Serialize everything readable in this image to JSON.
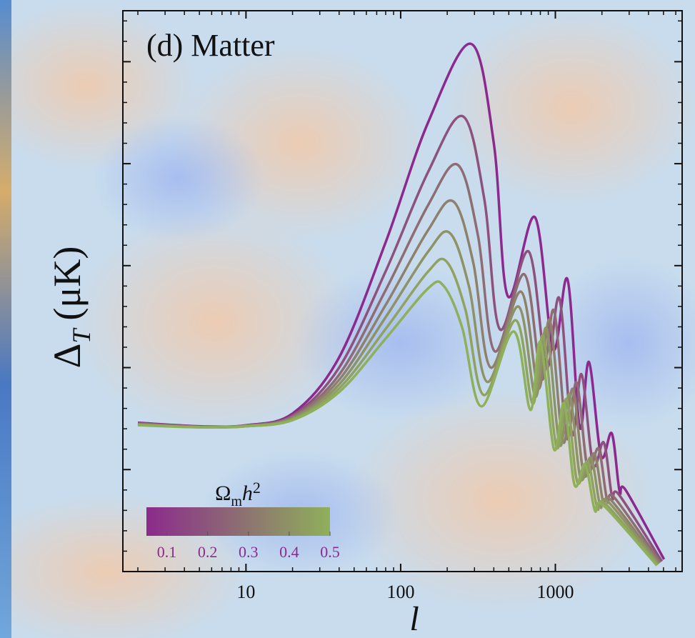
{
  "chart_data": {
    "type": "line",
    "title": "(d) Matter",
    "xlabel": "l",
    "ylabel": {
      "symbol": "Δ",
      "sub": "T",
      "unit": "(μK)"
    },
    "xscale": "log",
    "xlim": [
      1.6,
      6600
    ],
    "xticks": [
      10,
      100,
      1000
    ],
    "xminorticks": [
      2,
      3,
      4,
      5,
      6,
      7,
      8,
      9,
      20,
      30,
      40,
      50,
      60,
      70,
      80,
      90,
      200,
      300,
      400,
      500,
      600,
      700,
      800,
      900,
      2000,
      3000,
      4000,
      5000,
      6000
    ],
    "ylim": [
      0,
      110
    ],
    "yticks": [
      20,
      40,
      60,
      80,
      100
    ],
    "ytick_labels_shown": false,
    "yminorticks": [
      4,
      8,
      12,
      16,
      24,
      28,
      32,
      36,
      44,
      48,
      52,
      56,
      64,
      68,
      72,
      76,
      84,
      88,
      92,
      96,
      104,
      108
    ],
    "colorbar": {
      "title": {
        "base": "Ω",
        "sub": "m",
        "var": "h",
        "sup": "2"
      },
      "clim": [
        0.05,
        0.5
      ],
      "ticks": [
        0.1,
        0.2,
        0.3,
        0.4,
        0.5
      ],
      "colors": [
        "#8b2a8c",
        "#8fb05a"
      ],
      "label_color": "#8b2a8c"
    },
    "series": [
      {
        "color": "#8b2a8c",
        "x": [
          2,
          5,
          10,
          20,
          40,
          80,
          150,
          285,
          400,
          493,
          738,
          968,
          1198,
          1436,
          1648,
          1975,
          2316,
          2602,
          2845,
          5040
        ],
        "values": [
          29.2,
          28.5,
          28.7,
          31,
          42,
          64.6,
          88,
          103.5,
          84,
          54,
          69.5,
          43.6,
          57.3,
          28.3,
          41.1,
          22.7,
          27.1,
          15.7,
          16,
          2.4
        ]
      },
      {
        "color": "#8c527d",
        "x": [
          2,
          5,
          10,
          20,
          40,
          80,
          150,
          252,
          347,
          438,
          671,
          875,
          1061,
          1281,
          1475,
          1754,
          2057,
          2329,
          2575,
          4884
        ],
        "values": [
          29.1,
          28.4,
          28.6,
          30.6,
          40,
          58.9,
          78.3,
          89.3,
          73.1,
          47.5,
          62.8,
          40,
          53.6,
          27,
          38.7,
          21,
          25.3,
          14.6,
          15.1,
          2
        ]
      },
      {
        "color": "#8d6d73",
        "x": [
          2,
          5,
          10,
          20,
          40,
          80,
          150,
          233,
          316,
          405,
          630,
          817,
          979,
          1186,
          1371,
          1621,
          1901,
          2165,
          2410,
          4778
        ],
        "values": [
          29,
          28.4,
          28.6,
          30.4,
          38.6,
          55.2,
          71.8,
          79.8,
          65.9,
          43.2,
          58.3,
          37.7,
          51.2,
          26.2,
          37.1,
          19.9,
          24.1,
          13.9,
          14.5,
          1.8
        ]
      },
      {
        "color": "#8e816c",
        "x": [
          2,
          5,
          10,
          20,
          40,
          80,
          150,
          219,
          295,
          382,
          600,
          777,
          921,
          1120,
          1297,
          1527,
          1790,
          2048,
          2293,
          4702
        ],
        "values": [
          28.9,
          28.4,
          28.6,
          30.2,
          37.6,
          52.3,
          66.9,
          72.6,
          60.5,
          40,
          54.9,
          35.9,
          49.3,
          25.5,
          35.8,
          19,
          23.1,
          13.3,
          14,
          1.6
        ]
      },
      {
        "color": "#8e9365",
        "x": [
          2,
          5,
          10,
          20,
          40,
          80,
          150,
          208,
          277,
          363,
          576,
          743,
          875,
          1066,
          1236,
          1452,
          1702,
          1952,
          2196,
          4637
        ],
        "values": [
          28.8,
          28.3,
          28.5,
          30,
          36.7,
          49.9,
          62.7,
          66.4,
          55.8,
          37.2,
          52,
          34.3,
          47.7,
          24.9,
          34.8,
          18.3,
          22.3,
          12.8,
          13.7,
          1.5
        ]
      },
      {
        "color": "#8fa35f",
        "x": [
          2,
          5,
          10,
          20,
          40,
          80,
          150,
          198,
          262,
          346,
          554,
          714,
          833,
          1018,
          1183,
          1383,
          1621,
          1868,
          2108,
          4577
        ],
        "values": [
          28.8,
          28.3,
          28.5,
          29.8,
          35.9,
          47.6,
          58.8,
          60.8,
          51.4,
          34.6,
          49.3,
          32.9,
          46.2,
          24.4,
          33.8,
          17.6,
          21.6,
          12.4,
          13.3,
          1.3
        ]
      },
      {
        "color": "#8fb05a",
        "x": [
          2,
          5,
          10,
          20,
          40,
          80,
          150,
          190,
          250,
          333,
          537,
          690,
          800,
          980,
          1140,
          1330,
          1560,
          1800,
          2040,
          4530
        ],
        "values": [
          28.7,
          28.3,
          28.5,
          29.7,
          35.2,
          45.7,
          55.5,
          56,
          47.8,
          32.4,
          47.1,
          31.7,
          45,
          24,
          33,
          17,
          21,
          12,
          13,
          1.2
        ]
      }
    ]
  }
}
